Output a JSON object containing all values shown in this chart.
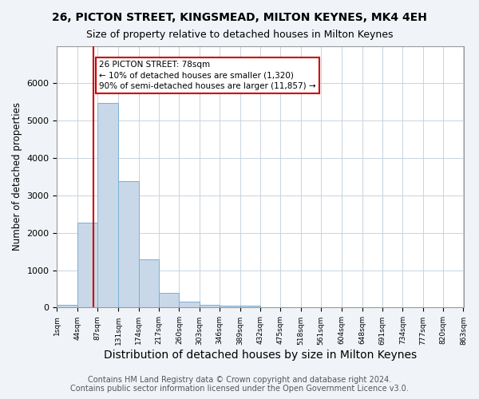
{
  "title": "26, PICTON STREET, KINGSMEAD, MILTON KEYNES, MK4 4EH",
  "subtitle": "Size of property relative to detached houses in Milton Keynes",
  "xlabel": "Distribution of detached houses by size in Milton Keynes",
  "ylabel": "Number of detached properties",
  "footer_line1": "Contains HM Land Registry data © Crown copyright and database right 2024.",
  "footer_line2": "Contains public sector information licensed under the Open Government Licence v3.0.",
  "bar_edges": [
    1,
    44,
    87,
    131,
    174,
    217,
    260,
    303,
    346,
    389,
    432,
    475,
    518,
    561,
    604,
    648,
    691,
    734,
    777,
    820,
    863
  ],
  "bar_heights": [
    70,
    2270,
    5480,
    3380,
    1300,
    390,
    165,
    70,
    55,
    60,
    0,
    0,
    0,
    0,
    0,
    0,
    0,
    0,
    0,
    0
  ],
  "bar_color": "#c8d8e8",
  "bar_edge_color": "#7bafd4",
  "property_line_x": 78,
  "property_line_color": "#cc0000",
  "annotation_text": "26 PICTON STREET: 78sqm\n← 10% of detached houses are smaller (1,320)\n90% of semi-detached houses are larger (11,857) →",
  "annotation_box_color": "#ffffff",
  "annotation_box_edge": "#cc0000",
  "ylim": [
    0,
    7000
  ],
  "yticks": [
    0,
    1000,
    2000,
    3000,
    4000,
    5000,
    6000,
    7000
  ],
  "tick_labels": [
    "1sqm",
    "44sqm",
    "87sqm",
    "131sqm",
    "174sqm",
    "217sqm",
    "260sqm",
    "303sqm",
    "346sqm",
    "389sqm",
    "432sqm",
    "475sqm",
    "518sqm",
    "561sqm",
    "604sqm",
    "648sqm",
    "691sqm",
    "734sqm",
    "777sqm",
    "820sqm",
    "863sqm"
  ],
  "grid_color": "#c8d4e0",
  "plot_bg_color": "#ffffff",
  "fig_bg_color": "#f0f4f8",
  "title_fontsize": 10,
  "subtitle_fontsize": 9,
  "xlabel_fontsize": 10,
  "ylabel_fontsize": 8.5,
  "footer_fontsize": 7
}
